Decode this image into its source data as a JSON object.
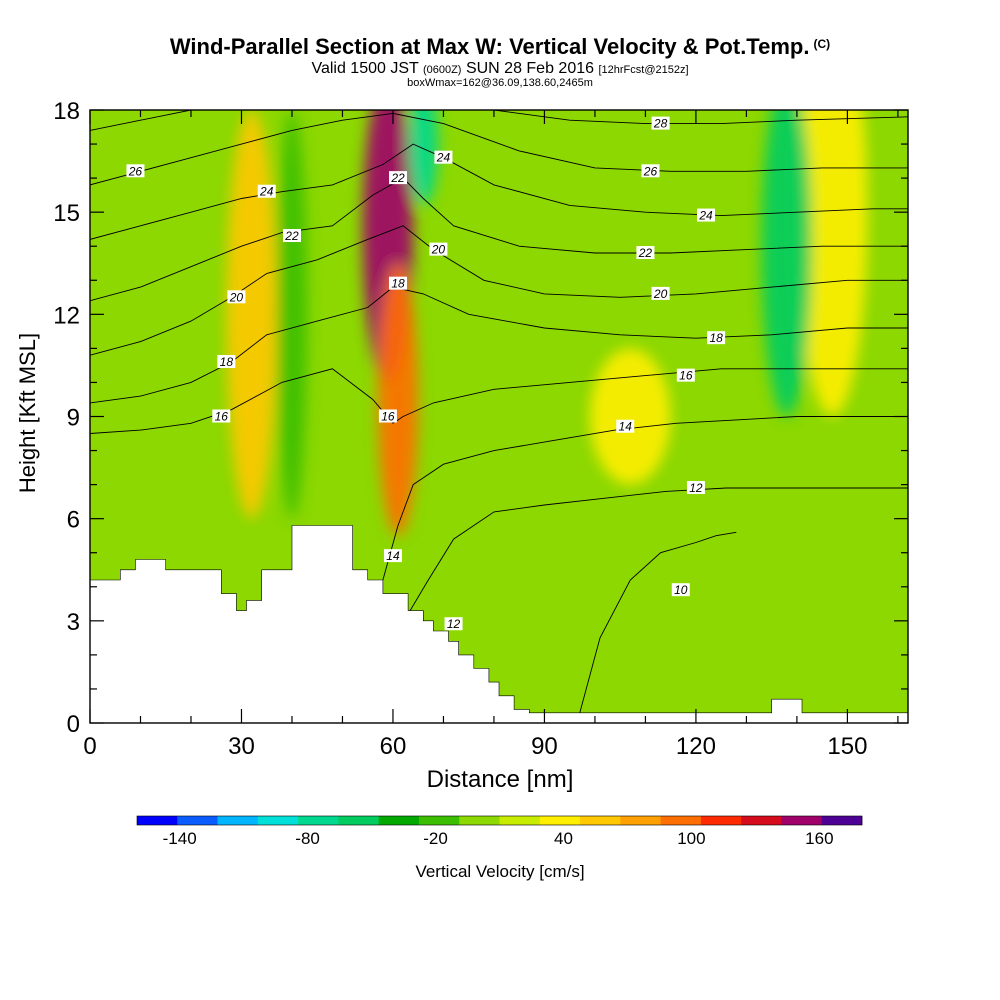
{
  "header": {
    "title": "Wind-Parallel Section at Max W: Vertical Velocity & Pot.Temp.",
    "copyright": "(C)",
    "valid_prefix": "Valid 1500 JST",
    "valid_utc": "(0600Z)",
    "valid_date": "SUN 28 Feb 2016",
    "forecast": "[12hrFcst@2152z]",
    "box_info": "boxWmax=162@36.09,138.60,2465m"
  },
  "chart_data": {
    "type": "heatmap",
    "title": "Wind-Parallel Section at Max W: Vertical Velocity & Pot.Temp.",
    "xlabel": "Distance [nm]",
    "ylabel": "Height [Kft MSL]",
    "xlim": [
      0,
      162
    ],
    "ylim": [
      0,
      18
    ],
    "x_ticks": [
      "0",
      "30",
      "60",
      "90",
      "120",
      "150"
    ],
    "y_ticks": [
      "0",
      "3",
      "6",
      "9",
      "12",
      "15",
      "18"
    ],
    "colorbar": {
      "label": "Vertical Velocity [cm/s]",
      "tick_labels": [
        "-140",
        "-80",
        "-20",
        "40",
        "100",
        "160"
      ],
      "tick_values": [
        -140,
        -80,
        -20,
        40,
        100,
        160
      ],
      "levels": [
        -160,
        -140,
        -120,
        -100,
        -80,
        -60,
        -40,
        -20,
        0,
        20,
        40,
        60,
        80,
        100,
        120,
        140,
        160,
        180
      ],
      "colors": [
        "#0000ff",
        "#0a5cff",
        "#00b4ff",
        "#00e0d8",
        "#00d890",
        "#00cc60",
        "#00a800",
        "#3cbe00",
        "#8cd800",
        "#c8ec00",
        "#ffee00",
        "#ffc800",
        "#ffa000",
        "#ff6e00",
        "#ff2a00",
        "#d40c1c",
        "#a0006a",
        "#4c0094"
      ]
    },
    "terrain_profile": {
      "x": [
        0,
        6,
        6,
        9,
        9,
        15,
        15,
        26,
        26,
        29,
        29,
        31,
        31,
        34,
        34,
        40,
        40,
        43,
        43,
        46,
        46,
        49,
        49,
        52,
        52,
        55,
        55,
        58,
        58,
        63,
        63,
        66,
        66,
        68,
        68,
        71,
        71,
        73,
        73,
        76,
        76,
        79,
        79,
        81,
        81,
        84,
        84,
        87,
        87,
        90,
        90,
        135,
        135,
        141,
        141,
        162
      ],
      "height": [
        4.2,
        4.2,
        4.5,
        4.5,
        4.8,
        4.8,
        4.5,
        4.5,
        3.8,
        3.8,
        3.3,
        3.3,
        3.6,
        3.6,
        4.5,
        4.5,
        5.8,
        5.8,
        5.8,
        5.8,
        5.8,
        5.8,
        5.8,
        5.8,
        4.5,
        4.5,
        4.2,
        4.2,
        3.8,
        3.8,
        3.3,
        3.3,
        3.0,
        3.0,
        2.7,
        2.7,
        2.4,
        2.4,
        2.0,
        2.0,
        1.6,
        1.6,
        1.2,
        1.2,
        0.8,
        0.8,
        0.4,
        0.4,
        0.3,
        0.3,
        0.3,
        0.3,
        0.7,
        0.7,
        0.3,
        0.3
      ]
    },
    "theta_contour_labels": [
      {
        "text": "28",
        "x": 113,
        "y": 17.6
      },
      {
        "text": "26",
        "x": 9,
        "y": 16.2
      },
      {
        "text": "26",
        "x": 111,
        "y": 16.2
      },
      {
        "text": "24",
        "x": 70,
        "y": 16.6
      },
      {
        "text": "24",
        "x": 35,
        "y": 15.6
      },
      {
        "text": "24",
        "x": 122,
        "y": 14.9
      },
      {
        "text": "22",
        "x": 61,
        "y": 16.0
      },
      {
        "text": "22",
        "x": 40,
        "y": 14.3
      },
      {
        "text": "22",
        "x": 110,
        "y": 13.8
      },
      {
        "text": "20",
        "x": 69,
        "y": 13.9
      },
      {
        "text": "20",
        "x": 29,
        "y": 12.5
      },
      {
        "text": "20",
        "x": 113,
        "y": 12.6
      },
      {
        "text": "18",
        "x": 61,
        "y": 12.9
      },
      {
        "text": "18",
        "x": 27,
        "y": 10.6
      },
      {
        "text": "18",
        "x": 124,
        "y": 11.3
      },
      {
        "text": "16",
        "x": 59,
        "y": 9.0
      },
      {
        "text": "16",
        "x": 26,
        "y": 9.0
      },
      {
        "text": "16",
        "x": 118,
        "y": 10.2
      },
      {
        "text": "14",
        "x": 106,
        "y": 8.7
      },
      {
        "text": "14",
        "x": 60,
        "y": 4.9
      },
      {
        "text": "12",
        "x": 120,
        "y": 6.9
      },
      {
        "text": "12",
        "x": 72,
        "y": 2.9
      },
      {
        "text": "10",
        "x": 117,
        "y": 3.9
      }
    ],
    "theta_contours": [
      {
        "value": 10,
        "x": [
          97,
          101,
          107,
          113,
          120,
          124,
          128
        ],
        "y": [
          0.3,
          2.5,
          4.2,
          5.0,
          5.3,
          5.5,
          5.6
        ]
      },
      {
        "value": 12,
        "x": [
          63,
          67,
          72,
          80,
          90,
          102,
          114,
          126,
          138,
          150,
          162
        ],
        "y": [
          3.2,
          4.2,
          5.4,
          6.2,
          6.4,
          6.6,
          6.8,
          6.9,
          6.9,
          6.9,
          6.9
        ]
      },
      {
        "value": 14,
        "x": [
          58,
          61,
          64,
          70,
          80,
          92,
          104,
          116,
          128,
          140,
          150,
          162
        ],
        "y": [
          4.2,
          5.8,
          7.0,
          7.6,
          8.0,
          8.3,
          8.6,
          8.8,
          8.9,
          9.0,
          9.0,
          9.0
        ]
      },
      {
        "value": 16,
        "x": [
          0,
          10,
          20,
          28,
          38,
          48,
          56,
          60,
          62,
          68,
          80,
          95,
          110,
          125,
          140,
          150,
          162
        ],
        "y": [
          8.5,
          8.6,
          8.8,
          9.2,
          10.0,
          10.4,
          9.5,
          8.8,
          9.0,
          9.4,
          9.8,
          10.0,
          10.2,
          10.4,
          10.4,
          10.4,
          10.4
        ]
      },
      {
        "value": 18,
        "x": [
          0,
          10,
          20,
          28,
          35,
          45,
          55,
          60,
          66,
          75,
          90,
          105,
          120,
          135,
          150,
          162
        ],
        "y": [
          9.4,
          9.6,
          10.0,
          10.6,
          11.4,
          11.8,
          12.2,
          12.8,
          12.6,
          12.0,
          11.6,
          11.4,
          11.3,
          11.4,
          11.6,
          11.6
        ]
      },
      {
        "value": 20,
        "x": [
          0,
          10,
          20,
          28,
          35,
          45,
          55,
          62,
          68,
          78,
          90,
          105,
          120,
          135,
          150,
          162
        ],
        "y": [
          10.8,
          11.2,
          11.8,
          12.5,
          13.2,
          13.6,
          14.2,
          14.6,
          13.9,
          13.0,
          12.6,
          12.5,
          12.6,
          12.8,
          13.0,
          13.0
        ]
      },
      {
        "value": 22,
        "x": [
          0,
          10,
          20,
          30,
          38,
          48,
          56,
          62,
          66,
          72,
          85,
          100,
          115,
          130,
          145,
          162
        ],
        "y": [
          12.4,
          12.8,
          13.4,
          14.0,
          14.4,
          14.6,
          15.5,
          16.0,
          15.4,
          14.6,
          14.0,
          13.8,
          13.8,
          13.9,
          14.0,
          14.0
        ]
      },
      {
        "value": 24,
        "x": [
          0,
          10,
          20,
          30,
          38,
          48,
          58,
          64,
          70,
          80,
          95,
          110,
          125,
          140,
          155,
          162
        ],
        "y": [
          14.2,
          14.6,
          15.0,
          15.4,
          15.6,
          15.8,
          16.4,
          17.0,
          16.6,
          15.8,
          15.2,
          15.0,
          14.9,
          15.0,
          15.1,
          15.1
        ]
      },
      {
        "value": 26,
        "x": [
          0,
          10,
          20,
          30,
          40,
          50,
          60,
          70,
          85,
          100,
          115,
          130,
          145,
          162
        ],
        "y": [
          15.8,
          16.2,
          16.6,
          17.0,
          17.4,
          17.7,
          17.9,
          17.6,
          16.8,
          16.3,
          16.2,
          16.2,
          16.3,
          16.3
        ]
      },
      {
        "value": 28,
        "x": [
          0,
          10,
          20,
          30,
          40,
          60,
          80,
          95,
          110,
          125,
          140,
          162
        ],
        "y": [
          17.4,
          17.7,
          18.0,
          18.0,
          18.0,
          18.0,
          18.0,
          17.7,
          17.6,
          17.6,
          17.7,
          17.8
        ]
      }
    ],
    "w_features": [
      {
        "x": 59,
        "y": 14.5,
        "rx": 5,
        "ry": 4.5,
        "w": 160
      },
      {
        "x": 61,
        "y": 9.5,
        "rx": 4,
        "ry": 4,
        "w": 100
      },
      {
        "x": 66,
        "y": 17,
        "rx": 3,
        "ry": 1.8,
        "w": -80
      },
      {
        "x": 32,
        "y": 12,
        "rx": 5,
        "ry": 6,
        "w": 60
      },
      {
        "x": 40,
        "y": 12,
        "rx": 3,
        "ry": 6,
        "w": -20
      },
      {
        "x": 147,
        "y": 15,
        "rx": 7,
        "ry": 6,
        "w": 40
      },
      {
        "x": 138,
        "y": 14,
        "rx": 5,
        "ry": 5,
        "w": -60
      },
      {
        "x": 107,
        "y": 9,
        "rx": 8,
        "ry": 2,
        "w": 40
      }
    ]
  }
}
